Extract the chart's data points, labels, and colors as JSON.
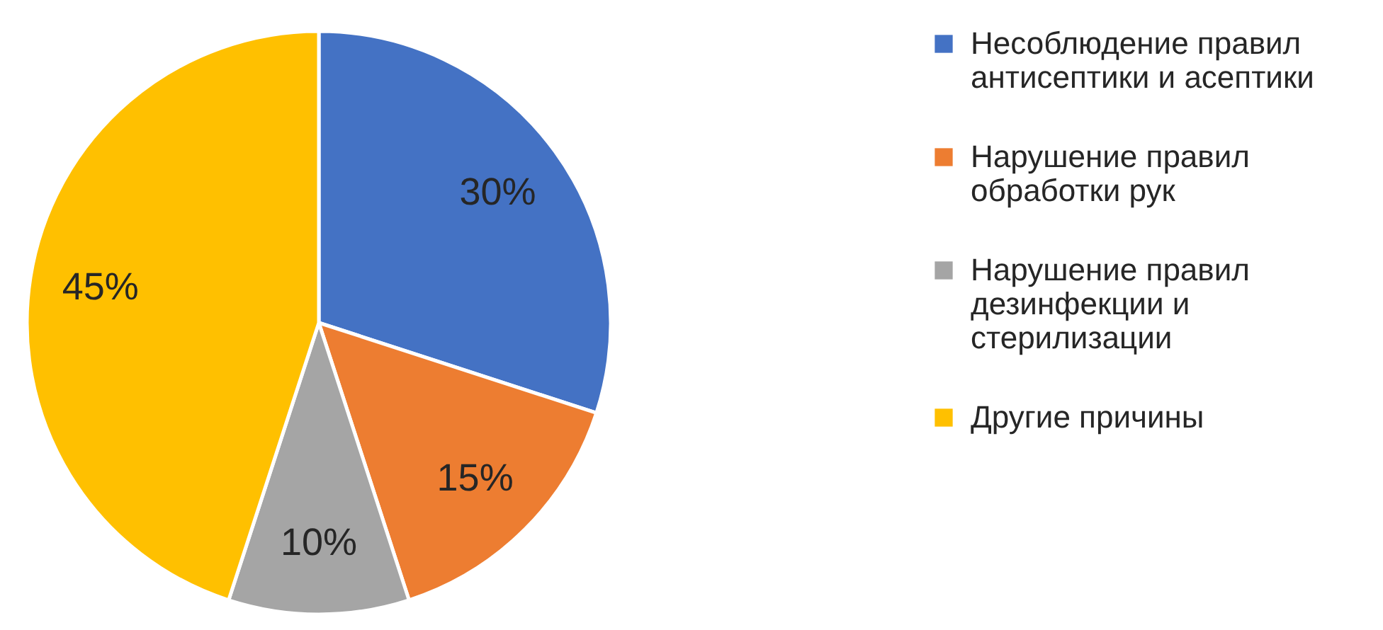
{
  "chart_data": {
    "type": "pie",
    "categories": [
      "Несоблюдение правил антисептики и асептики",
      "Нарушение правил обработки рук",
      "Нарушение правил дезинфекции и стерилизации",
      "Другие причины"
    ],
    "values": [
      30,
      15,
      10,
      45
    ],
    "value_labels": [
      "30%",
      "15%",
      "10%",
      "45%"
    ],
    "colors": [
      "#4472c4",
      "#ed7d31",
      "#a5a5a5",
      "#ffc000"
    ],
    "legend": "right"
  }
}
